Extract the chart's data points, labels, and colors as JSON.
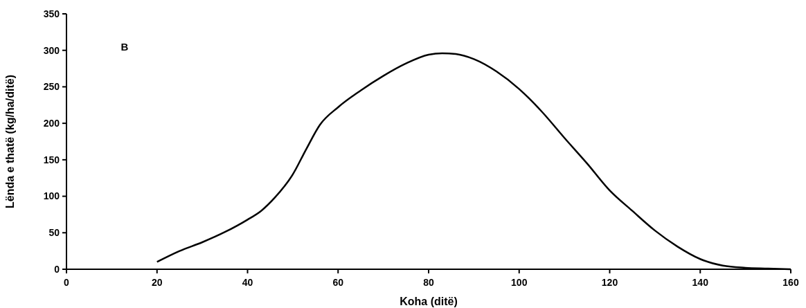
{
  "chart_data": {
    "type": "line",
    "xlabel": "Koha (ditë)",
    "ylabel": "Lënda e thatë (kg/ha/ditë)",
    "annotations": [
      "B"
    ],
    "xlim": [
      0,
      160
    ],
    "xticks": [
      0,
      20,
      40,
      60,
      80,
      100,
      120,
      140,
      160
    ],
    "ylim": [
      0,
      350
    ],
    "yticks": [
      0,
      50,
      100,
      150,
      200,
      250,
      300,
      350
    ],
    "marker": "none",
    "grid": false,
    "x": [
      20,
      25,
      30,
      35,
      40,
      43,
      46,
      50,
      53,
      56,
      60,
      65,
      70,
      75,
      80,
      83,
      86,
      90,
      95,
      100,
      105,
      110,
      115,
      120,
      125,
      130,
      135,
      140,
      145,
      150,
      155,
      160
    ],
    "series": [
      {
        "color": "#000000",
        "values": [
          10,
          25,
          37,
          51,
          68,
          80,
          98,
          130,
          165,
          198,
          222,
          245,
          265,
          282,
          294,
          296,
          295,
          288,
          271,
          247,
          216,
          180,
          145,
          108,
          80,
          53,
          31,
          14,
          5,
          2,
          1,
          0
        ]
      }
    ]
  }
}
